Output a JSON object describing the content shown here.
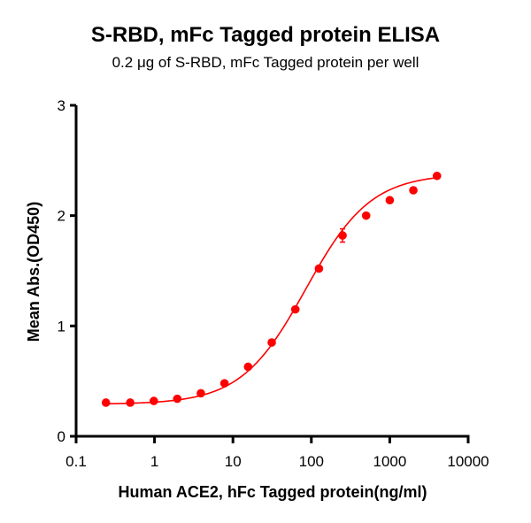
{
  "chart_data": {
    "type": "scatter",
    "title": "S-RBD, mFc Tagged protein ELISA",
    "subtitle": "0.2 μg of S-RBD, mFc Tagged protein per well",
    "xlabel": "Human ACE2, hFc Tagged protein(ng/ml)",
    "ylabel": "Mean Abs.(OD450)",
    "xscale": "log",
    "xlim": [
      0.1,
      10000
    ],
    "ylim": [
      0,
      3
    ],
    "xticks": [
      "0.1",
      "1",
      "10",
      "100",
      "1000",
      "10000"
    ],
    "yticks": [
      "0",
      "1",
      "2",
      "3"
    ],
    "grid": false,
    "legend": null,
    "series": [
      {
        "name": "S-RBD, mFc Tagged protein",
        "color": "#ff0000",
        "x": [
          0.24,
          0.49,
          0.98,
          1.95,
          3.9,
          7.8,
          15.6,
          31.25,
          62.5,
          125,
          250,
          500,
          1000,
          2000,
          4000
        ],
        "y": [
          0.305,
          0.305,
          0.32,
          0.34,
          0.39,
          0.48,
          0.63,
          0.85,
          1.15,
          1.52,
          1.82,
          2.0,
          2.14,
          2.23,
          2.36
        ],
        "error": [
          0,
          0,
          0,
          0,
          0,
          0,
          0,
          0,
          0,
          0,
          0.06,
          0,
          0,
          0,
          0
        ],
        "fit": {
          "model": "4PL",
          "bottom": 0.29,
          "top": 2.38,
          "ec50": 85,
          "hill": 1.05
        }
      }
    ]
  }
}
